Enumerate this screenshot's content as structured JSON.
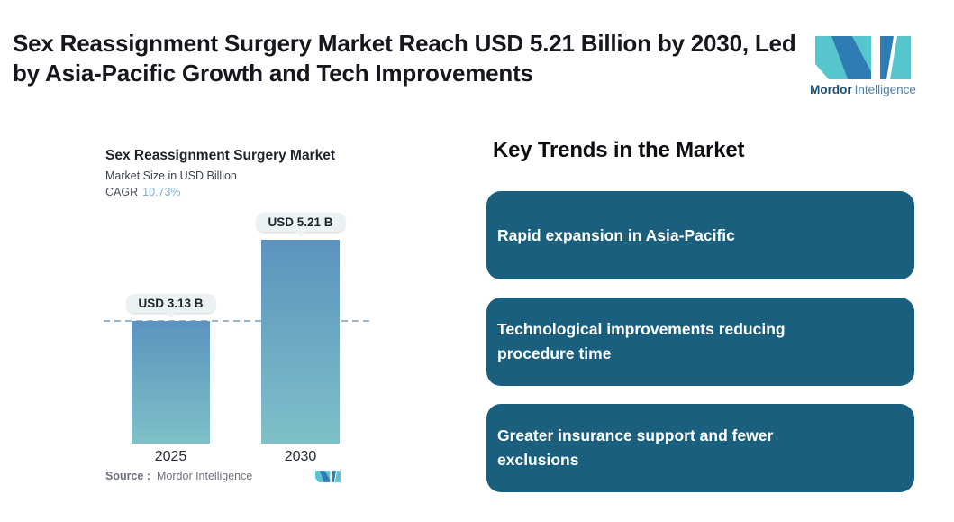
{
  "header": {
    "title": "Sex Reassignment Surgery Market Reach USD 5.21 Billion by 2030, Led by Asia-Pacific Growth and Tech Improvements"
  },
  "logo": {
    "brand_bold": "Mordor",
    "brand_light": "Intelligence",
    "teal": "#56C5CE",
    "blue": "#2E7CB4",
    "text_bold_color": "#1C4F74",
    "text_light_color": "#4E7FA4"
  },
  "chart": {
    "title": "Sex Reassignment Surgery Market",
    "subtitle": "Market Size in USD Billion",
    "cagr_label": "CAGR",
    "cagr_value": "10.73%",
    "cagr_value_color": "#7EB0D1",
    "source_label": "Source :",
    "source_value": "Mordor Intelligence"
  },
  "chart_data": {
    "type": "bar",
    "title": "Sex Reassignment Surgery Market",
    "ylabel": "Market Size in USD Billion",
    "unit": "USD Billion",
    "cagr": "10.73%",
    "categories": [
      "2025",
      "2030"
    ],
    "values": [
      3.13,
      5.21
    ],
    "value_labels": [
      "USD 3.13 B",
      "USD 5.21 B"
    ],
    "ylim": [
      0,
      5.21
    ],
    "reference_line": 3.13,
    "grid": false,
    "legend": false,
    "bar_gradient_top": "#5C93BE",
    "bar_gradient_bottom": "#7FC0C8",
    "dashed_line_color": "#92B8D6"
  },
  "trends": {
    "heading": "Key Trends in the Market",
    "card_color": "#1A607E",
    "card_text_color": "#FFFFFF",
    "items": [
      "Rapid expansion in Asia-Pacific",
      "Technological improvements reducing procedure time",
      "Greater insurance support and fewer exclusions"
    ]
  }
}
